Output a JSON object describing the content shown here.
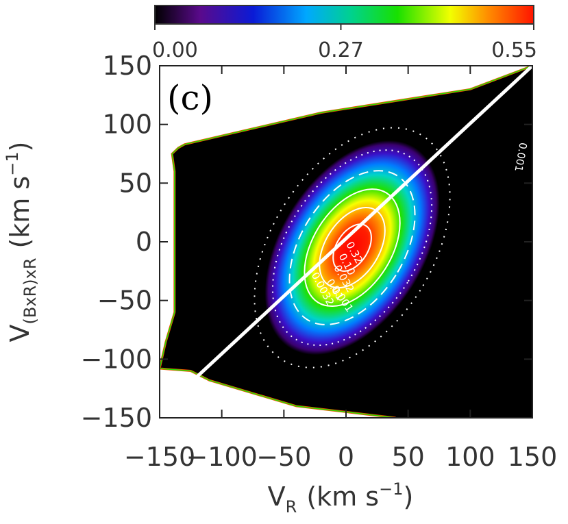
{
  "chart_data": {
    "type": "heatmap",
    "panel_label": "(c)",
    "xlabel": {
      "main": "V",
      "sub": "R",
      "units": "(km s",
      "exp": "−1",
      "close": ")"
    },
    "ylabel": {
      "main": "V",
      "sub": "(BxR)xR",
      "units": "(km s",
      "exp": "−1",
      "close": ")"
    },
    "xlim": [
      -150,
      150
    ],
    "ylim": [
      -150,
      150
    ],
    "x_ticks": [
      -150,
      -100,
      -50,
      0,
      50,
      100,
      150
    ],
    "y_ticks": [
      -150,
      -100,
      -50,
      0,
      50,
      100,
      150
    ],
    "x_tick_labels": [
      "−150",
      "−100",
      "−50",
      "0",
      "50",
      "100",
      "150"
    ],
    "y_tick_labels": [
      "−150",
      "−100",
      "−50",
      "0",
      "50",
      "100",
      "150"
    ],
    "colorbar": {
      "min": 0.0,
      "max": 0.55,
      "ticks": [
        0.0,
        0.27,
        0.55
      ],
      "tick_labels": [
        "0.00",
        "0.27",
        "0.55"
      ],
      "colormap": "rainbow"
    },
    "distribution": {
      "center": [
        5,
        -5
      ],
      "sigma_major": 28,
      "sigma_minor": 17,
      "tilt_deg": 58,
      "peak": 0.55
    },
    "contour_levels": [
      0.001,
      0.0032,
      0.01,
      0.032,
      0.1,
      0.32
    ],
    "contour_labels": [
      "0.001",
      "0.0032",
      "0.01",
      "0.032",
      "0.10",
      "0.32",
      "0.001"
    ],
    "line": {
      "x": [
        -120,
        150
      ],
      "y": [
        -115,
        150
      ]
    },
    "data_boundary": {
      "upper": [
        [
          -135,
          80
        ],
        [
          -130,
          83
        ],
        [
          -20,
          110
        ],
        [
          100,
          130
        ],
        [
          150,
          150
        ]
      ],
      "left": [
        [
          -135,
          80
        ],
        [
          -140,
          75
        ],
        [
          -138,
          60
        ],
        [
          -138,
          -60
        ],
        [
          -145,
          -85
        ],
        [
          -150,
          -108
        ]
      ],
      "lower": [
        [
          -150,
          -108
        ],
        [
          -125,
          -110
        ],
        [
          -110,
          -118
        ],
        [
          -40,
          -140
        ],
        [
          40,
          -150
        ]
      ]
    }
  }
}
